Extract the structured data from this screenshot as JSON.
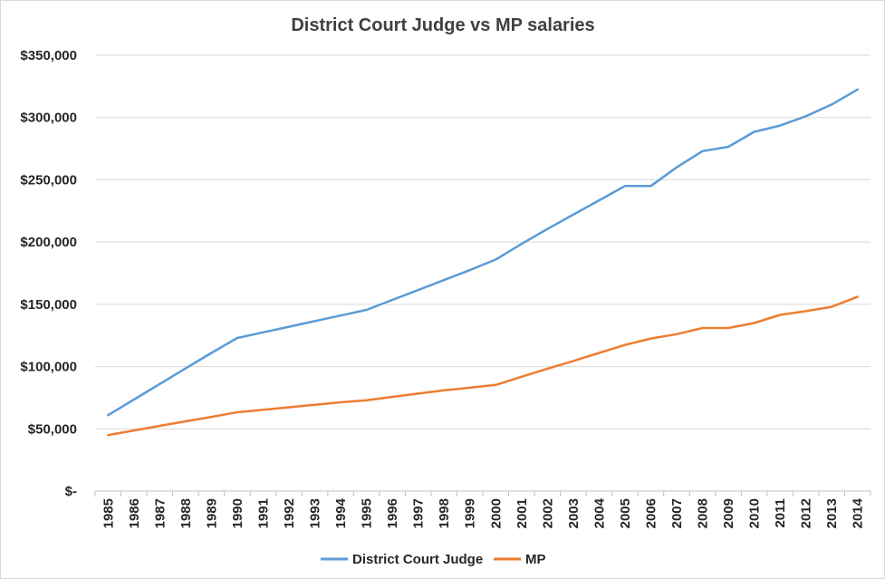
{
  "chart_data": {
    "type": "line",
    "title": "District Court Judge vs MP salaries",
    "xlabel": "",
    "ylabel": "",
    "categories": [
      "1985",
      "1986",
      "1987",
      "1988",
      "1989",
      "1990",
      "1991",
      "1992",
      "1993",
      "1994",
      "1995",
      "1996",
      "1997",
      "1998",
      "1999",
      "2000",
      "2001",
      "2002",
      "2003",
      "2004",
      "2005",
      "2006",
      "2007",
      "2008",
      "2009",
      "2010",
      "2011",
      "2012",
      "2013",
      "2014"
    ],
    "ylim": [
      0,
      350000
    ],
    "y_ticks": [
      0,
      50000,
      100000,
      150000,
      200000,
      250000,
      300000,
      350000
    ],
    "y_tick_labels": [
      "$-",
      "$50,000",
      "$100,000",
      "$150,000",
      "$200,000",
      "$250,000",
      "$300,000",
      "$350,000"
    ],
    "grid": true,
    "legend_position": "bottom",
    "series": [
      {
        "name": "District Court Judge",
        "color": "#5b9bd5",
        "values": [
          61000,
          73500,
          86000,
          98500,
          111000,
          123000,
          127500,
          132000,
          136500,
          141000,
          145500,
          153500,
          161500,
          169500,
          177500,
          186000,
          198500,
          210500,
          222000,
          233500,
          245000,
          245000,
          260000,
          273000,
          276500,
          288500,
          293500,
          301000,
          310500,
          322500
        ]
      },
      {
        "name": "MP",
        "color": "#ed7d31",
        "values": [
          45000,
          48700,
          52400,
          56000,
          59600,
          63300,
          65300,
          67300,
          69300,
          71300,
          73000,
          75700,
          78300,
          81000,
          83000,
          85300,
          91800,
          98300,
          104500,
          111000,
          117400,
          122500,
          126000,
          131000,
          131000,
          135000,
          141500,
          144500,
          148000,
          156000
        ]
      }
    ]
  }
}
